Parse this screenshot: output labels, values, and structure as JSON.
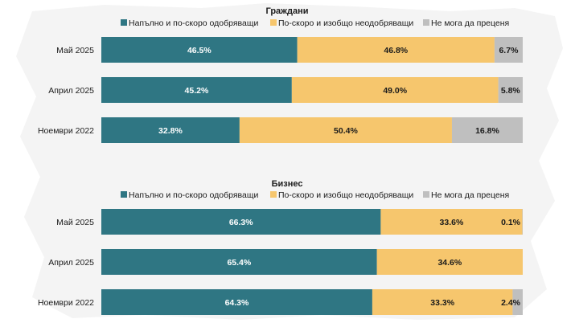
{
  "colors": {
    "approve": "#2f7683",
    "disapprove": "#f6c66d",
    "cannot_judge": "#bfbfbf",
    "background_map": "#f2f2f2"
  },
  "chart_data": [
    {
      "type": "bar",
      "orientation": "horizontal-stacked-100",
      "title": "Граждани",
      "legend_position": "top",
      "categories": [
        "Май 2025",
        "Април 2025",
        "Ноември 2022"
      ],
      "series": [
        {
          "name": "Напълно и по-скоро одобряващи",
          "values": [
            46.5,
            45.2,
            32.8
          ],
          "labels": [
            "46.5%",
            "45.2%",
            "32.8%"
          ]
        },
        {
          "name": "По-скоро и изобщо неодобряващи",
          "values": [
            46.8,
            49.0,
            50.4
          ],
          "labels": [
            "46.8%",
            "49.0%",
            "50.4%"
          ]
        },
        {
          "name": "Не мога да преценя",
          "values": [
            6.7,
            5.8,
            16.8
          ],
          "labels": [
            "6.7%",
            "5.8%",
            "16.8%"
          ]
        }
      ]
    },
    {
      "type": "bar",
      "orientation": "horizontal-stacked-100",
      "title": "Бизнес",
      "legend_position": "top",
      "categories": [
        "Май 2025",
        "Април 2025",
        "Ноември 2022"
      ],
      "series": [
        {
          "name": "Напълно и по-скоро одобряващи",
          "values": [
            66.3,
            65.4,
            64.3
          ],
          "labels": [
            "66.3%",
            "65.4%",
            "64.3%"
          ]
        },
        {
          "name": "По-скоро и изобщо неодобряващи",
          "values": [
            33.6,
            34.6,
            33.3
          ],
          "labels": [
            "33.6%",
            "34.6%",
            "33.3%"
          ]
        },
        {
          "name": "Не мога да преценя",
          "values": [
            0.1,
            0.0,
            2.4
          ],
          "labels": [
            "0.1%",
            "",
            "2.4%"
          ]
        }
      ]
    }
  ]
}
